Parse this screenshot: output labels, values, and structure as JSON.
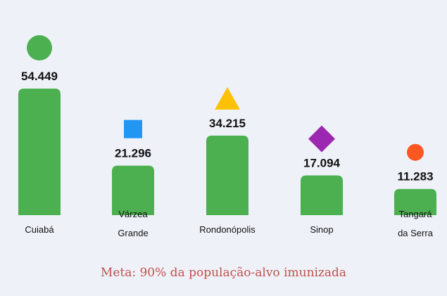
{
  "chart_data": {
    "type": "bar",
    "categories": [
      "Cuiabá",
      "Várzea Grande",
      "Rondonópolis",
      "Sinop",
      "Tangará da Serra"
    ],
    "category_lines": [
      [
        "Cuiabá"
      ],
      [
        "Várzea",
        "Grande"
      ],
      [
        "Rondonópolis"
      ],
      [
        "Sinop"
      ],
      [
        "Tangará",
        "da Serra"
      ]
    ],
    "values": [
      54449,
      21296,
      34215,
      17094,
      11283
    ],
    "value_labels": [
      "54.449",
      "21.296",
      "34.215",
      "17.094",
      "11.283"
    ],
    "bar_color": "#4caf50",
    "markers": [
      {
        "shape": "circle-icon",
        "color": "#4caf50"
      },
      {
        "shape": "square-icon",
        "color": "#2196f3"
      },
      {
        "shape": "triangle-icon",
        "color": "#ffc107"
      },
      {
        "shape": "diamond-icon",
        "color": "#9c27b0"
      },
      {
        "shape": "circle-icon",
        "color": "#ff5722"
      }
    ],
    "ylim": [
      0,
      54449
    ],
    "grid": false,
    "legend": "none"
  },
  "footer": {
    "note": "Meta: 90% da população-alvo imunizada",
    "color": "#c0504d"
  }
}
